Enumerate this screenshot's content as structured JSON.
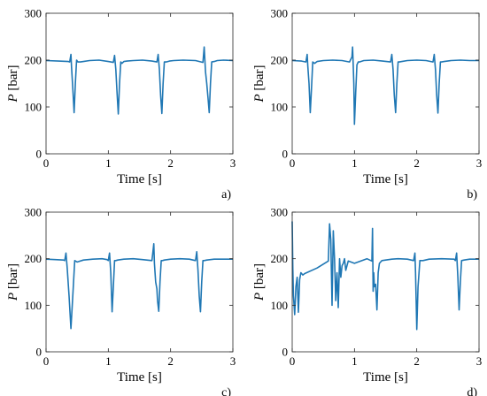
{
  "chart_data": [
    {
      "type": "line",
      "panel_label": "a)",
      "xlabel": "Time [s]",
      "ylabel_italic": "P",
      "ylabel_rest": " [bar]",
      "xlim": [
        0,
        3
      ],
      "ylim": [
        0,
        300
      ],
      "xticks": [
        0,
        1,
        2,
        3
      ],
      "yticks": [
        0,
        100,
        200,
        300
      ],
      "grid": false,
      "color": "#1f77b4",
      "series": [
        {
          "x": [
            0,
            0.2,
            0.36,
            0.38,
            0.4,
            0.41,
            0.43,
            0.45,
            0.47,
            0.49,
            0.51,
            0.55,
            0.6,
            0.7,
            0.85,
            1.0,
            1.08,
            1.1,
            1.12,
            1.14,
            1.16,
            1.18,
            1.2,
            1.22,
            1.25,
            1.3,
            1.4,
            1.55,
            1.7,
            1.78,
            1.8,
            1.82,
            1.84,
            1.86,
            1.88,
            1.9,
            1.93,
            1.98,
            2.05,
            2.2,
            2.4,
            2.52,
            2.54,
            2.56,
            2.58,
            2.59,
            2.6,
            2.62,
            2.64,
            2.66,
            2.7,
            2.75,
            2.85,
            3.0
          ],
          "y": [
            199,
            198,
            197,
            196,
            212,
            185,
            140,
            88,
            150,
            200,
            196,
            196,
            197,
            199,
            200,
            197,
            195,
            210,
            180,
            130,
            85,
            150,
            196,
            193,
            197,
            198,
            199,
            200,
            198,
            196,
            212,
            180,
            125,
            86,
            150,
            196,
            196,
            198,
            199,
            200,
            199,
            195,
            228,
            175,
            150,
            135,
            120,
            88,
            150,
            196,
            197,
            199,
            200,
            199
          ]
        }
      ]
    },
    {
      "type": "line",
      "panel_label": "b)",
      "xlabel": "Time [s]",
      "ylabel_italic": "P",
      "ylabel_rest": " [bar]",
      "xlim": [
        0,
        3
      ],
      "ylim": [
        0,
        300
      ],
      "xticks": [
        0,
        1,
        2,
        3
      ],
      "yticks": [
        0,
        100,
        200,
        300
      ],
      "grid": false,
      "color": "#1f77b4",
      "series": [
        {
          "x": [
            0,
            0.15,
            0.22,
            0.24,
            0.25,
            0.27,
            0.29,
            0.31,
            0.33,
            0.36,
            0.4,
            0.5,
            0.65,
            0.8,
            0.92,
            0.96,
            0.97,
            0.98,
            0.99,
            1.0,
            1.02,
            1.04,
            1.06,
            1.08,
            1.1,
            1.15,
            1.3,
            1.45,
            1.58,
            1.6,
            1.62,
            1.64,
            1.66,
            1.68,
            1.7,
            1.72,
            1.76,
            1.85,
            2.0,
            2.15,
            2.26,
            2.28,
            2.3,
            2.32,
            2.34,
            2.36,
            2.38,
            2.4,
            2.44,
            2.55,
            2.7,
            2.85,
            3.0
          ],
          "y": [
            199,
            198,
            196,
            212,
            188,
            150,
            88,
            140,
            196,
            193,
            197,
            199,
            200,
            199,
            196,
            207,
            228,
            190,
            150,
            63,
            130,
            190,
            196,
            196,
            197,
            199,
            200,
            198,
            196,
            212,
            180,
            125,
            88,
            150,
            196,
            196,
            197,
            199,
            200,
            199,
            196,
            212,
            180,
            125,
            87,
            150,
            196,
            196,
            197,
            199,
            200,
            199,
            199
          ]
        }
      ]
    },
    {
      "type": "line",
      "panel_label": "c)",
      "xlabel": "Time [s]",
      "ylabel_italic": "P",
      "ylabel_rest": " [bar]",
      "xlim": [
        0,
        3
      ],
      "ylim": [
        0,
        300
      ],
      "xticks": [
        0,
        1,
        2,
        3
      ],
      "yticks": [
        0,
        100,
        200,
        300
      ],
      "grid": false,
      "color": "#1f77b4",
      "series": [
        {
          "x": [
            0,
            0.15,
            0.28,
            0.3,
            0.32,
            0.34,
            0.37,
            0.4,
            0.43,
            0.46,
            0.5,
            0.6,
            0.75,
            0.9,
            0.98,
            1.0,
            1.02,
            1.04,
            1.06,
            1.08,
            1.1,
            1.12,
            1.15,
            1.25,
            1.4,
            1.55,
            1.7,
            1.73,
            1.74,
            1.76,
            1.78,
            1.79,
            1.81,
            1.83,
            1.85,
            1.87,
            1.9,
            2.0,
            2.15,
            2.3,
            2.4,
            2.42,
            2.44,
            2.46,
            2.48,
            2.5,
            2.52,
            2.54,
            2.58,
            2.7,
            2.85,
            3.0
          ],
          "y": [
            199,
            198,
            197,
            196,
            212,
            180,
            120,
            50,
            120,
            196,
            193,
            197,
            199,
            200,
            198,
            196,
            212,
            170,
            86,
            140,
            196,
            196,
            197,
            199,
            200,
            198,
            196,
            232,
            190,
            150,
            135,
            110,
            87,
            150,
            196,
            196,
            197,
            199,
            200,
            199,
            196,
            215,
            175,
            120,
            86,
            150,
            196,
            196,
            197,
            199,
            199,
            199
          ]
        }
      ]
    },
    {
      "type": "line",
      "panel_label": "d)",
      "xlabel": "Time [s]",
      "ylabel_italic": "P",
      "ylabel_rest": " [bar]",
      "xlim": [
        0,
        3
      ],
      "ylim": [
        0,
        300
      ],
      "xticks": [
        0,
        1,
        2,
        3
      ],
      "yticks": [
        0,
        100,
        200,
        300
      ],
      "grid": false,
      "color": "#1f77b4",
      "series": [
        {
          "x": [
            0.0,
            0.01,
            0.02,
            0.04,
            0.06,
            0.08,
            0.1,
            0.12,
            0.14,
            0.17,
            0.2,
            0.4,
            0.58,
            0.6,
            0.62,
            0.64,
            0.66,
            0.68,
            0.7,
            0.72,
            0.74,
            0.76,
            0.78,
            0.8,
            0.82,
            0.84,
            0.86,
            0.9,
            1.0,
            1.2,
            1.28,
            1.29,
            1.3,
            1.31,
            1.32,
            1.34,
            1.36,
            1.38,
            1.4,
            1.44,
            1.5,
            1.6,
            1.7,
            1.85,
            1.95,
            1.97,
            1.98,
            1.99,
            2.0,
            2.02,
            2.05,
            2.1,
            2.2,
            2.4,
            2.6,
            2.62,
            2.64,
            2.66,
            2.68,
            2.7,
            2.72,
            2.76,
            2.85,
            3.0
          ],
          "y": [
            280,
            180,
            120,
            80,
            140,
            160,
            85,
            155,
            170,
            165,
            168,
            180,
            195,
            275,
            240,
            100,
            260,
            200,
            110,
            170,
            95,
            200,
            160,
            185,
            190,
            200,
            175,
            195,
            190,
            200,
            195,
            265,
            130,
            170,
            140,
            145,
            90,
            170,
            190,
            196,
            197,
            199,
            200,
            199,
            196,
            212,
            170,
            110,
            48,
            140,
            196,
            196,
            199,
            200,
            199,
            196,
            212,
            160,
            90,
            150,
            196,
            197,
            199,
            199
          ]
        }
      ]
    }
  ]
}
